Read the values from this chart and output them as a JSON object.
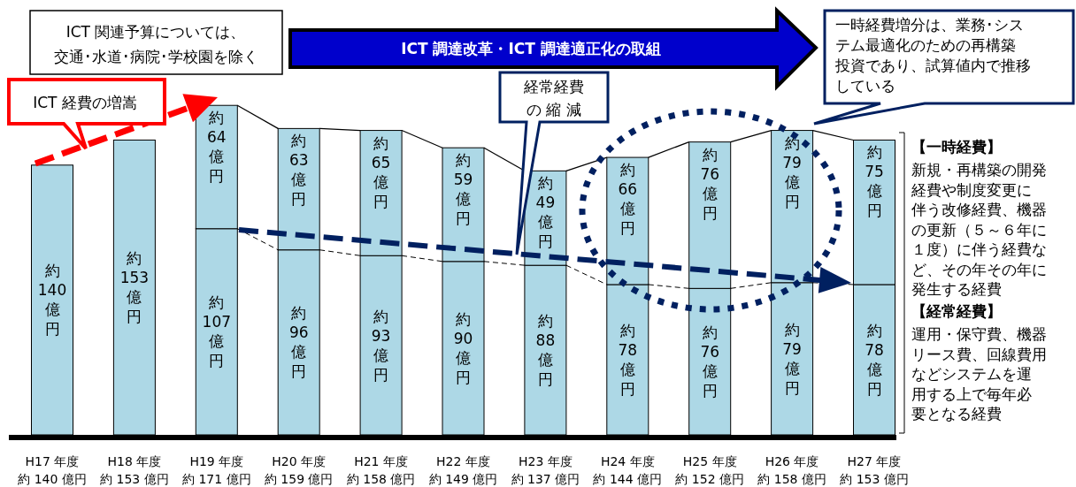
{
  "chart_data": {
    "type": "bar",
    "stacked": true,
    "categories": [
      "H17 年度",
      "H18 年度",
      "H19 年度",
      "H20 年度",
      "H21 年度",
      "H22 年度",
      "H23 年度",
      "H24 年度",
      "H25 年度",
      "H26 年度",
      "H27 年度"
    ],
    "series": [
      {
        "name": "【経常経費】",
        "color": "#add8e6",
        "values": [
          140,
          153,
          107,
          96,
          93,
          90,
          88,
          78,
          76,
          79,
          78
        ],
        "value_labels": [
          "約140億円",
          "約153億円",
          "約107億円",
          "約96億円",
          "約93億円",
          "約90億円",
          "約88億円",
          "約78億円",
          "約76億円",
          "約79億円",
          "約78億円"
        ]
      },
      {
        "name": "【一時経費】",
        "color": "#add8e6",
        "values": [
          null,
          null,
          64,
          63,
          65,
          59,
          49,
          66,
          76,
          79,
          75
        ],
        "value_labels": [
          null,
          null,
          "約64億円",
          "約63億円",
          "約65億円",
          "約59億円",
          "約49億円",
          "約66億円",
          "約76億円",
          "約79億円",
          "約75億円"
        ]
      }
    ],
    "totals": [
      "約 140 億円",
      "約 153 億円",
      "約 171 億円",
      "約 159 億円",
      "約 158 億円",
      "約 149 億円",
      "約 137 億円",
      "約 144 億円",
      "約 152 億円",
      "約 158 億円",
      "約 153 億円"
    ],
    "annotations": [
      "ICT 関連予算については、交通･水道･病院･学校園を除く",
      "ICT 調達改革・ICT 調達適正化の取組",
      "ICT 経費の増嵩",
      "経常経費の 縮 減",
      "一時経費増分は、業務･システム最適化のための再構築投資であり、試算値内で推移している",
      "新規・再構築の開発経費や制度変更に伴う改修経費、機器の更新（５～６年に１度）に伴う経費など、その年その年に発生する経費",
      "運用・保守費、機器リース費、回線費用などシステムを運用する上で毎年必要となる経費"
    ]
  }
}
